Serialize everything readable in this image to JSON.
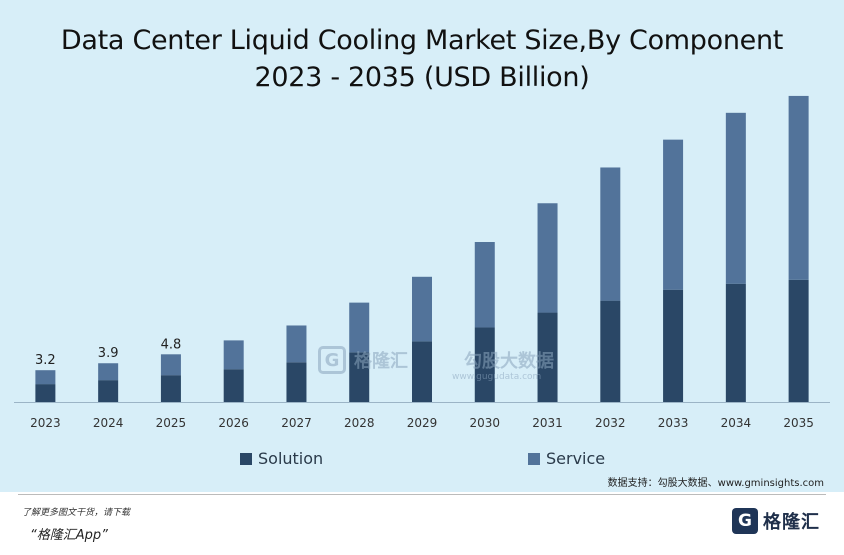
{
  "chart_data": {
    "type": "bar",
    "stacked": true,
    "title_lines": [
      "Data Center Liquid Cooling Market Size,By Component",
      "2023 - 2035 (USD Billion)"
    ],
    "categories": [
      "2023",
      "2024",
      "2025",
      "2026",
      "2027",
      "2028",
      "2029",
      "2030",
      "2031",
      "2032",
      "2033",
      "2034",
      "2035"
    ],
    "series": [
      {
        "name": "Solution",
        "color": "#2a4766",
        "values": [
          1.8,
          2.2,
          2.7,
          3.3,
          4.0,
          5.0,
          6.1,
          7.5,
          9.0,
          10.2,
          11.3,
          11.9,
          12.3
        ]
      },
      {
        "name": "Service",
        "color": "#52739a",
        "values": [
          1.4,
          1.7,
          2.1,
          2.9,
          3.7,
          5.0,
          6.5,
          8.6,
          11.0,
          13.4,
          15.1,
          17.2,
          18.5
        ]
      }
    ],
    "data_labels": [
      "3.2",
      "3.9",
      "4.8",
      "",
      "",
      "",
      "",
      "",
      "",
      "",
      "",
      "",
      ""
    ],
    "ylim": [
      0,
      32
    ],
    "legend_position": "bottom",
    "grid": false,
    "xlabel": "",
    "ylabel": ""
  },
  "source_text": "数据支持：勾股大数据、www.gminsights.com",
  "watermark": {
    "brand_cn": "格隆汇",
    "site_cn": "勾股大数据",
    "site_url": "www.gugudata.com"
  },
  "footer": {
    "note": "了解更多图文干货，请下载",
    "app_name": "“格隆汇App”",
    "logo_text": "格隆汇",
    "logo_mark": "G"
  }
}
